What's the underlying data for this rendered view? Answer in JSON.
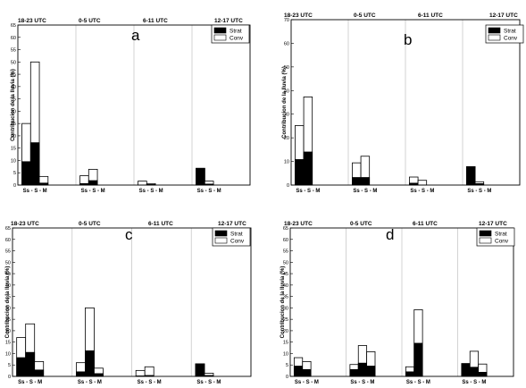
{
  "figure": {
    "period_labels": [
      "18-23 UTC",
      "0-5 UTC",
      "6-11 UTC",
      "12-17 UTC"
    ],
    "group_label": "Ss - S - M",
    "ylabel": "Contribucion de la lluvia (%)",
    "legend": [
      "Strat",
      "Conv"
    ],
    "colors": {
      "strat": "#000000",
      "conv": "#ffffff",
      "outline": "#000000",
      "grid": "#c8c8c8"
    }
  },
  "chart_data": [
    {
      "panel": "a",
      "type": "bar",
      "stacked": true,
      "categories": [
        "18-23 UTC",
        "0-5 UTC",
        "6-11 UTC",
        "12-17 UTC"
      ],
      "sub_categories": [
        "Ss",
        "S",
        "M"
      ],
      "ylim": [
        0,
        65
      ],
      "yticks": [
        0,
        5,
        10,
        15,
        20,
        25,
        30,
        35,
        40,
        45,
        50,
        55,
        60,
        65
      ],
      "legend_position": "top-right",
      "grid": "vertical",
      "strat": [
        [
          9.5,
          17.2,
          0.8
        ],
        [
          0.6,
          1.8,
          null
        ],
        [
          0.0,
          0.2,
          null
        ],
        [
          6.8,
          0.4,
          null
        ]
      ],
      "total": [
        [
          25.0,
          50.0,
          3.5
        ],
        [
          3.8,
          6.4,
          null
        ],
        [
          1.6,
          0.6,
          null
        ],
        [
          6.8,
          1.6,
          null
        ]
      ]
    },
    {
      "panel": "b",
      "type": "bar",
      "stacked": true,
      "categories": [
        "18-23 UTC",
        "0-5 UTC",
        "6-11 UTC",
        "12-17 UTC"
      ],
      "sub_categories": [
        "Ss",
        "S",
        "M"
      ],
      "ylim": [
        0,
        70
      ],
      "yticks": [
        0,
        10,
        20,
        30,
        40,
        50,
        60,
        70
      ],
      "legend_position": "top-right",
      "grid": "vertical",
      "strat": [
        [
          10.8,
          14.0,
          null
        ],
        [
          3.2,
          3.2,
          null
        ],
        [
          0.8,
          0.0,
          null
        ],
        [
          7.8,
          0.6,
          null
        ]
      ],
      "total": [
        [
          25.2,
          37.3,
          null
        ],
        [
          9.4,
          12.2,
          null
        ],
        [
          3.4,
          2.0,
          null
        ],
        [
          7.8,
          1.4,
          null
        ]
      ]
    },
    {
      "panel": "c",
      "type": "bar",
      "stacked": true,
      "categories": [
        "18-23 UTC",
        "0-5 UTC",
        "6-11 UTC",
        "12-17 UTC"
      ],
      "sub_categories": [
        "Ss",
        "S",
        "M"
      ],
      "ylim": [
        0,
        65
      ],
      "yticks": [
        0,
        5,
        10,
        15,
        20,
        25,
        30,
        35,
        40,
        45,
        50,
        55,
        60,
        65
      ],
      "legend_position": "top-right",
      "grid": "vertical",
      "strat": [
        [
          8.2,
          10.5,
          2.8
        ],
        [
          2.0,
          11.2,
          1.2
        ],
        [
          0.2,
          0.4,
          null
        ],
        [
          5.5,
          0.4,
          null
        ]
      ],
      "total": [
        [
          17.0,
          23.0,
          6.5
        ],
        [
          6.0,
          30.0,
          3.6
        ],
        [
          2.6,
          4.2,
          null
        ],
        [
          5.5,
          1.4,
          null
        ]
      ]
    },
    {
      "panel": "d",
      "type": "bar",
      "stacked": true,
      "categories": [
        "18-23 UTC",
        "0-5 UTC",
        "6-11 UTC",
        "12-17 UTC"
      ],
      "sub_categories": [
        "Ss",
        "S",
        "M"
      ],
      "ylim": [
        0,
        65
      ],
      "yticks": [
        0,
        5,
        10,
        15,
        20,
        25,
        30,
        35,
        40,
        45,
        50,
        55,
        60,
        65
      ],
      "legend_position": "top-right",
      "grid": "vertical",
      "strat": [
        [
          4.5,
          3.0,
          null
        ],
        [
          3.0,
          5.8,
          4.5
        ],
        [
          2.0,
          14.5,
          null
        ],
        [
          5.6,
          4.0,
          1.8
        ]
      ],
      "total": [
        [
          8.2,
          6.5,
          null
        ],
        [
          5.2,
          13.5,
          10.8
        ],
        [
          4.2,
          29.2,
          null
        ],
        [
          5.6,
          11.0,
          5.4
        ]
      ]
    }
  ]
}
